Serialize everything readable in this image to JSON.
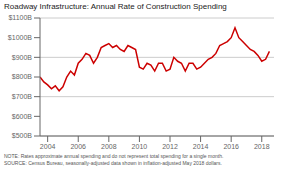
{
  "chart_data": {
    "type": "line",
    "title": "Roadway Infrastructure: Annual Rate of Construction Spending",
    "annotations": [
      "NOTE: Rates approximate annual spending and do not represent total spending for a single month.",
      "SOURCE: Census Bureau, seasonally-adjusted data shown in inflation-adjusted May 2018 dollars."
    ],
    "x": [
      2003.5,
      2003.75,
      2004.0,
      2004.25,
      2004.5,
      2004.75,
      2005.0,
      2005.25,
      2005.5,
      2005.75,
      2006.0,
      2006.25,
      2006.5,
      2006.75,
      2007.0,
      2007.25,
      2007.5,
      2007.75,
      2008.0,
      2008.25,
      2008.5,
      2008.75,
      2009.0,
      2009.25,
      2009.5,
      2009.75,
      2010.0,
      2010.25,
      2010.5,
      2010.75,
      2011.0,
      2011.25,
      2011.5,
      2011.75,
      2012.0,
      2012.25,
      2012.5,
      2012.75,
      2013.0,
      2013.25,
      2013.5,
      2013.75,
      2014.0,
      2014.25,
      2014.5,
      2014.75,
      2015.0,
      2015.25,
      2015.5,
      2015.75,
      2016.0,
      2016.25,
      2016.5,
      2016.75,
      2017.0,
      2017.25,
      2017.5,
      2017.75,
      2018.0,
      2018.25,
      2018.5
    ],
    "values": [
      800,
      775,
      760,
      740,
      755,
      730,
      750,
      800,
      830,
      810,
      870,
      890,
      920,
      910,
      870,
      900,
      950,
      960,
      970,
      950,
      960,
      940,
      930,
      960,
      950,
      940,
      850,
      840,
      870,
      860,
      830,
      870,
      870,
      830,
      840,
      900,
      880,
      870,
      830,
      870,
      870,
      840,
      850,
      870,
      890,
      900,
      920,
      960,
      970,
      980,
      1000,
      1050,
      1000,
      980,
      960,
      940,
      930,
      910,
      880,
      890,
      930
    ],
    "color": "#cc0000",
    "xlim": [
      2003.5,
      2018.8
    ],
    "xticks": [
      2004,
      2006,
      2008,
      2010,
      2012,
      2014,
      2016,
      2018
    ],
    "ylim": [
      500,
      1100
    ],
    "yticks": [
      {
        "value": 500,
        "label": "$500B"
      },
      {
        "value": 600,
        "label": "$600B"
      },
      {
        "value": 700,
        "label": "$700B"
      },
      {
        "value": 800,
        "label": "$800B"
      },
      {
        "value": 900,
        "label": "$900B"
      },
      {
        "value": 1000,
        "label": "$1000B"
      },
      {
        "value": 1100,
        "label": "$1100B"
      }
    ],
    "grid": true
  }
}
